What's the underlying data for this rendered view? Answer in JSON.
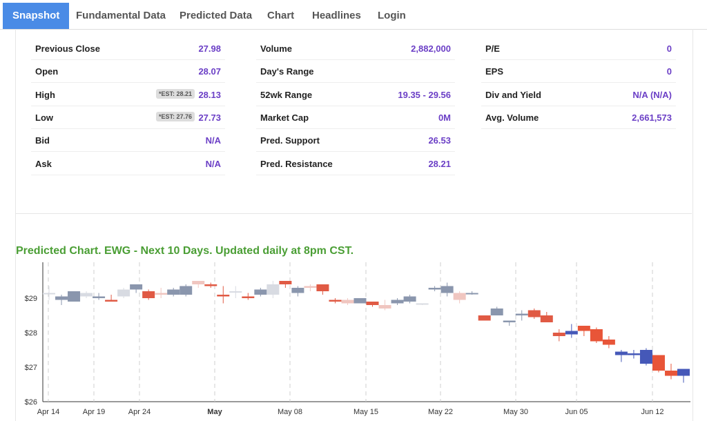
{
  "tabs": [
    "Snapshot",
    "Fundamental Data",
    "Predicted Data",
    "Chart",
    "Headlines",
    "Login"
  ],
  "stats": {
    "col1": [
      {
        "label": "Previous Close",
        "value": "27.98"
      },
      {
        "label": "Open",
        "value": "28.07"
      },
      {
        "label": "High",
        "value": "28.13",
        "badge": "*EST: 28.21"
      },
      {
        "label": "Low",
        "value": "27.73",
        "badge": "*EST: 27.76"
      },
      {
        "label": "Bid",
        "value": "N/A"
      },
      {
        "label": "Ask",
        "value": "N/A"
      }
    ],
    "col2": [
      {
        "label": "Volume",
        "value": "2,882,000"
      },
      {
        "label": "Day's Range",
        "value": ""
      },
      {
        "label": "52wk Range",
        "value": "19.35 - 29.56"
      },
      {
        "label": "Market Cap",
        "value": "0M"
      },
      {
        "label": "Pred. Support",
        "value": "26.53"
      },
      {
        "label": "Pred. Resistance",
        "value": "28.21"
      }
    ],
    "col3": [
      {
        "label": "P/E",
        "value": "0"
      },
      {
        "label": "EPS",
        "value": "0"
      },
      {
        "label": "Div and Yield",
        "value": "N/A (N/A)"
      },
      {
        "label": "Avg. Volume",
        "value": "2,661,573"
      }
    ]
  },
  "chart_title": "Predicted Chart. EWG - Next 10 Days. Updated daily at 8pm CST.",
  "chart_data": {
    "type": "candlestick",
    "ylim": [
      26,
      30
    ],
    "y_ticks": [
      "$26",
      "$27",
      "$28",
      "$29"
    ],
    "x_ticks": [
      "Apr 14",
      "Apr 19",
      "Apr 24",
      "May",
      "May 08",
      "May 15",
      "May 22",
      "May 30",
      "Jun 05",
      "Jun 12"
    ],
    "colors": {
      "up": "#8a96ad",
      "up_light": "#d8dbe2",
      "down": "#e05a44",
      "down_light": "#f0c6c0",
      "pred_up": "#4558b8",
      "pred_down": "#e85538"
    },
    "candles": [
      [
        29.15,
        29.35,
        28.95,
        29.15
      ],
      [
        28.95,
        29.1,
        28.8,
        29.05
      ],
      [
        28.9,
        29.2,
        28.9,
        29.2
      ],
      [
        29.05,
        29.2,
        29.0,
        29.15
      ],
      [
        29.0,
        29.15,
        28.95,
        29.05
      ],
      [
        28.95,
        29.1,
        28.9,
        28.9
      ],
      [
        29.05,
        29.3,
        29.0,
        29.25
      ],
      [
        29.25,
        29.4,
        29.15,
        29.4
      ],
      [
        29.2,
        29.25,
        28.95,
        29.0
      ],
      [
        29.15,
        29.3,
        29.0,
        29.1
      ],
      [
        29.1,
        29.3,
        29.05,
        29.25
      ],
      [
        29.1,
        29.4,
        29.05,
        29.35
      ],
      [
        29.5,
        29.5,
        29.3,
        29.4
      ],
      [
        29.4,
        29.45,
        29.3,
        29.35
      ],
      [
        29.1,
        29.35,
        28.85,
        29.05
      ],
      [
        29.2,
        29.35,
        29.0,
        29.2
      ],
      [
        29.05,
        29.15,
        28.95,
        29.0
      ],
      [
        29.1,
        29.3,
        29.05,
        29.25
      ],
      [
        29.1,
        29.5,
        29.0,
        29.4
      ],
      [
        29.5,
        29.5,
        29.3,
        29.4
      ],
      [
        29.15,
        29.35,
        29.05,
        29.3
      ],
      [
        29.35,
        29.4,
        29.2,
        29.3
      ],
      [
        29.4,
        29.4,
        29.1,
        29.2
      ],
      [
        28.95,
        29.0,
        28.85,
        28.9
      ],
      [
        28.95,
        29.0,
        28.8,
        28.85
      ],
      [
        28.85,
        29.0,
        28.85,
        29.0
      ],
      [
        28.9,
        28.9,
        28.75,
        28.8
      ],
      [
        28.8,
        28.95,
        28.65,
        28.7
      ],
      [
        28.85,
        29.0,
        28.8,
        28.95
      ],
      [
        28.9,
        29.1,
        28.85,
        29.05
      ],
      [
        28.85,
        28.85,
        28.8,
        28.85
      ],
      [
        29.25,
        29.35,
        29.2,
        29.3
      ],
      [
        29.15,
        29.45,
        29.05,
        29.35
      ],
      [
        29.15,
        29.2,
        28.85,
        28.95
      ],
      [
        29.15,
        29.2,
        29.1,
        29.15
      ],
      [
        28.5,
        28.5,
        28.35,
        28.35
      ],
      [
        28.5,
        28.75,
        28.5,
        28.7
      ],
      [
        28.3,
        28.35,
        28.2,
        28.35
      ],
      [
        28.5,
        28.65,
        28.35,
        28.55
      ],
      [
        28.65,
        28.7,
        28.4,
        28.45
      ],
      [
        28.5,
        28.6,
        28.3,
        28.3
      ],
      [
        28.0,
        28.1,
        27.75,
        27.9
      ],
      [
        27.95,
        28.25,
        27.85,
        28.05
      ],
      [
        28.2,
        28.2,
        27.9,
        28.05
      ],
      [
        28.1,
        28.15,
        27.7,
        27.75
      ],
      [
        27.8,
        27.9,
        27.55,
        27.65
      ],
      [
        27.35,
        27.5,
        27.15,
        27.45
      ],
      [
        27.35,
        27.5,
        27.25,
        27.4
      ],
      [
        27.1,
        27.55,
        27.05,
        27.5
      ],
      [
        27.35,
        27.35,
        26.85,
        26.9
      ],
      [
        26.9,
        27.1,
        26.65,
        26.75
      ],
      [
        26.75,
        26.95,
        26.55,
        26.95
      ]
    ]
  }
}
